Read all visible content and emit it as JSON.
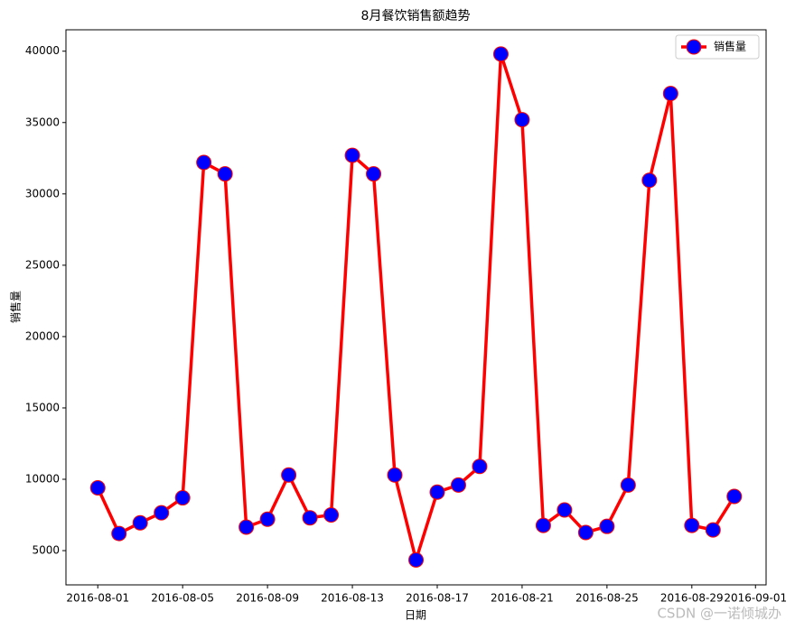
{
  "chart_data": {
    "type": "line",
    "title": "8月餐饮销售额趋势",
    "x_label": "日期",
    "y_label": "销售量",
    "x": [
      "2016-08-01",
      "2016-08-02",
      "2016-08-03",
      "2016-08-04",
      "2016-08-05",
      "2016-08-06",
      "2016-08-07",
      "2016-08-08",
      "2016-08-09",
      "2016-08-10",
      "2016-08-11",
      "2016-08-12",
      "2016-08-13",
      "2016-08-14",
      "2016-08-15",
      "2016-08-16",
      "2016-08-17",
      "2016-08-18",
      "2016-08-19",
      "2016-08-20",
      "2016-08-21",
      "2016-08-22",
      "2016-08-23",
      "2016-08-24",
      "2016-08-25",
      "2016-08-26",
      "2016-08-27",
      "2016-08-28",
      "2016-08-29",
      "2016-08-30",
      "2016-08-31"
    ],
    "series": [
      {
        "name": "销售量",
        "color": "#ff0000",
        "marker_color": "#0000ff",
        "values": [
          9400,
          6200,
          6950,
          7650,
          8700,
          32200,
          31400,
          6650,
          7200,
          10300,
          7300,
          7500,
          32700,
          31400,
          10300,
          4350,
          9100,
          9600,
          10900,
          39800,
          35200,
          6770,
          7850,
          6270,
          6700,
          9600,
          30950,
          37030,
          6770,
          6450,
          8800
        ]
      }
    ],
    "xlim": [
      "2016-07-30T12:00:00Z",
      "2016-09-01T12:00:00Z"
    ],
    "xticks": [
      "2016-08-01",
      "2016-08-05",
      "2016-08-09",
      "2016-08-13",
      "2016-08-17",
      "2016-08-21",
      "2016-08-25",
      "2016-08-29",
      "2016-09-01"
    ],
    "ylim": [
      2600,
      41500
    ],
    "yticks": [
      5000,
      10000,
      15000,
      20000,
      25000,
      30000,
      35000,
      40000
    ],
    "grid": false,
    "legend": "upper right",
    "watermark": "CSDN @一诺倾城办"
  }
}
